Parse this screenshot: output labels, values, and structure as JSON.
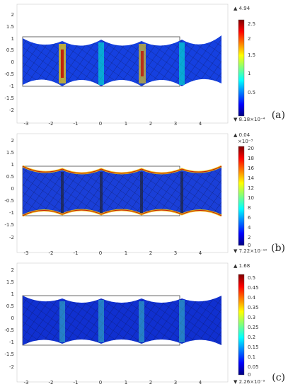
{
  "panels": [
    {
      "label": "(a)",
      "y_ticks": [
        "2",
        "1.5",
        "1",
        "0.5",
        "0",
        "-0.5",
        "-1",
        "-1.5",
        "-2"
      ],
      "x_ticks": [
        "-3",
        "-2",
        "-1",
        "0",
        "1",
        "2",
        "3",
        "4"
      ],
      "colorbar": {
        "max_label": "▲ 4.94",
        "min_label": "▼ 8.18×10⁻⁴",
        "exponent": "",
        "ticks": [
          "2.5",
          "2",
          "1.5",
          "1",
          "0.5"
        ]
      },
      "surface_style": "blue-fringe"
    },
    {
      "label": "(b)",
      "y_ticks": [
        "2",
        "1.5",
        "1",
        "0.5",
        "0",
        "-0.5",
        "-1",
        "-1.5",
        "-2"
      ],
      "x_ticks": [
        "-3",
        "-2",
        "-1",
        "0",
        "1",
        "2",
        "3",
        "4"
      ],
      "colorbar": {
        "max_label": "▲ 0.04",
        "min_label": "▼ 7.22×10⁻¹⁰",
        "exponent": "×10⁻³",
        "ticks": [
          "20",
          "18",
          "16",
          "14",
          "12",
          "10",
          "8",
          "6",
          "4",
          "2",
          "0"
        ]
      },
      "surface_style": "edge-hot"
    },
    {
      "label": "(c)",
      "y_ticks": [
        "2",
        "1.5",
        "1",
        "0.5",
        "0",
        "-0.5",
        "-1",
        "-1.5",
        "-2"
      ],
      "x_ticks": [
        "-3",
        "-2",
        "-1",
        "0",
        "1",
        "2",
        "3",
        "4"
      ],
      "colorbar": {
        "max_label": "▲ 1.68",
        "min_label": "▼ 2.26×10⁻⁵",
        "exponent": "",
        "ticks": [
          "0.5",
          "0.45",
          "0.4",
          "0.35",
          "0.3",
          "0.25",
          "0.2",
          "0.15",
          "0.1",
          "0.05",
          "0"
        ]
      },
      "surface_style": "cool"
    }
  ],
  "colors": {
    "jet_low": "#00007f",
    "jet_mid": "#00ffff",
    "jet_high": "#7f0000",
    "mesh": "#0a0a2a"
  }
}
